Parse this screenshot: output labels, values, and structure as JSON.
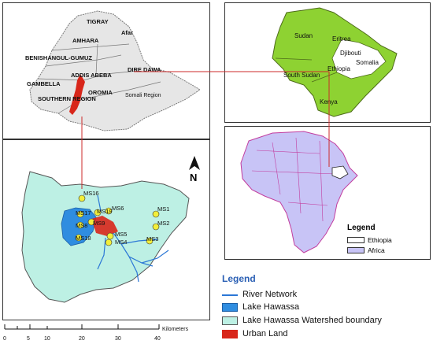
{
  "ethiopia_map": {
    "regions": [
      "TIGRAY",
      "Afar",
      "AMHARA",
      "BENISHANGUL-GUMUZ",
      "ADDIS ABEBA",
      "DIRE DAWA",
      "GAMBELLA",
      "OROMIA",
      "Somali Region",
      "SOUTHERN REGION"
    ]
  },
  "horn_map": {
    "countries": [
      "Sudan",
      "Eritrea",
      "Djibouti",
      "Somalia",
      "Ethiopia",
      "South Sudan",
      "Kenya"
    ]
  },
  "africa_legend": {
    "title": "Legend",
    "items": [
      {
        "label": "Ethiopia",
        "color": "#ffffff"
      },
      {
        "label": "Africa",
        "color": "#c8c4f6"
      }
    ]
  },
  "watershed_map": {
    "stations": [
      "MS16",
      "MS1",
      "MS6",
      "MS19",
      "MS17",
      "MS9",
      "MS8",
      "MS2",
      "MS18",
      "MS5",
      "MS3",
      "MS4"
    ],
    "north_label": "N"
  },
  "main_legend": {
    "title": "Legend",
    "items": [
      {
        "label": "River Network",
        "color": "#2b77d6",
        "kind": "line"
      },
      {
        "label": "Lake Hawassa",
        "color": "#2f8de0",
        "kind": "fill"
      },
      {
        "label": "Lake Hawassa Watershed boundary",
        "color": "#bdf0e4",
        "kind": "fill"
      },
      {
        "label": "Urban Land",
        "color": "#d8261a",
        "kind": "fill"
      }
    ]
  },
  "scale": {
    "ticks": [
      "0",
      "5",
      "10",
      "20",
      "30",
      "40"
    ],
    "unit": "Kilometers"
  },
  "colors": {
    "ethiopia_fill": "#e6e6e6",
    "horn_fill": "#8ed232",
    "africa_fill": "#c8c4f6",
    "border": "#cc2a2a",
    "water": "#2f8de0",
    "watershed": "#bdf0e4",
    "urban": "#d8261a",
    "station": "#f2ee3a"
  }
}
